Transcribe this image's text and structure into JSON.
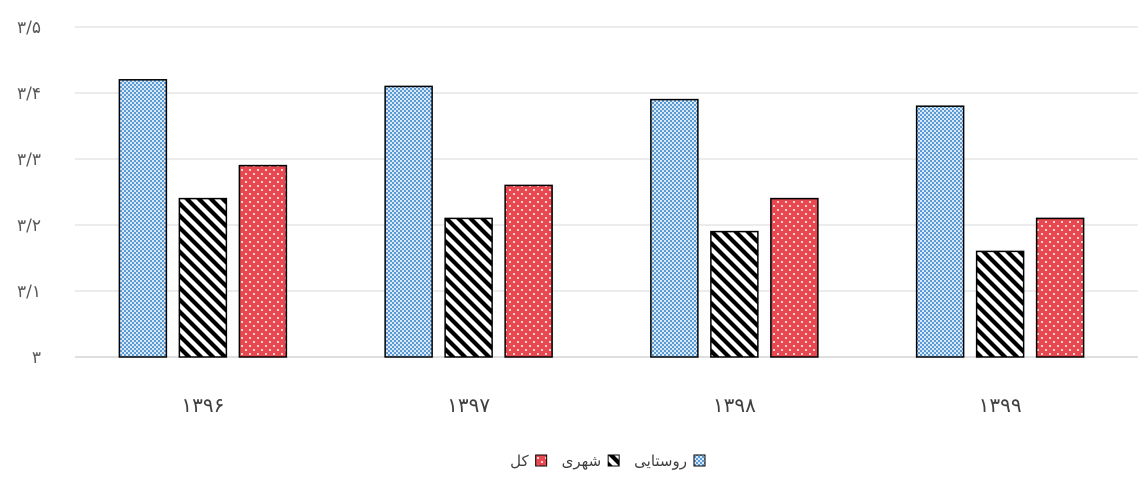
{
  "chart_data": {
    "type": "bar",
    "categories": [
      "۱۳۹۶",
      "۱۳۹۷",
      "۱۳۹۸",
      "۱۳۹۹"
    ],
    "series": [
      {
        "name": "روستایی",
        "values": [
          3.42,
          3.41,
          3.39,
          3.38
        ],
        "color": "#5b9bd5",
        "pattern": "checker"
      },
      {
        "name": "شهری",
        "values": [
          3.24,
          3.21,
          3.19,
          3.16
        ],
        "color": "#000000",
        "pattern": "diagonal-stripes"
      },
      {
        "name": "کل",
        "values": [
          3.29,
          3.26,
          3.24,
          3.21
        ],
        "color": "#e8484f",
        "pattern": "dotted"
      }
    ],
    "ylim": [
      3,
      3.5
    ],
    "yticks": [
      3,
      3.1,
      3.2,
      3.3,
      3.4,
      3.5
    ],
    "ytick_labels": [
      "۳",
      "۳/۱",
      "۳/۲",
      "۳/۳",
      "۳/۴",
      "۳/۵"
    ],
    "grid": true,
    "legend_position": "bottom",
    "title": "",
    "xlabel": "",
    "ylabel": ""
  }
}
